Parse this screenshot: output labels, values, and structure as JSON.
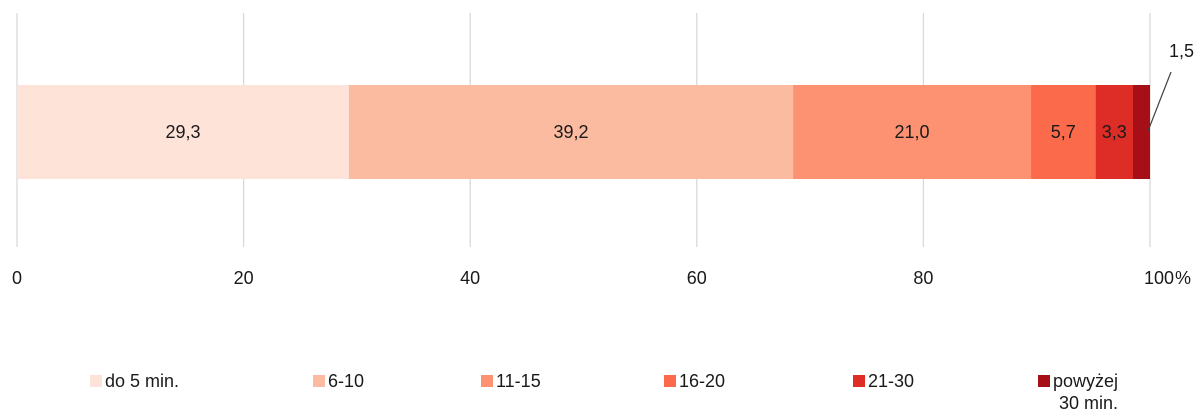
{
  "chart_data": {
    "type": "bar",
    "orientation": "horizontal",
    "stacked": true,
    "categories": [
      ""
    ],
    "series": [
      {
        "name": "do 5 min.",
        "values": [
          29.3
        ],
        "label": "29,3",
        "color": "#fde3d8"
      },
      {
        "name": "6-10",
        "values": [
          39.2
        ],
        "label": "39,2",
        "color": "#fbbba0"
      },
      {
        "name": "11-15",
        "values": [
          21.0
        ],
        "label": "21,0",
        "color": "#fc9272"
      },
      {
        "name": "16-20",
        "values": [
          5.7
        ],
        "label": "5,7",
        "color": "#fb6a4a"
      },
      {
        "name": "21-30",
        "values": [
          3.3
        ],
        "label": "3,3",
        "color": "#de2d26"
      },
      {
        "name": "powyżej\n30 min.",
        "values": [
          1.5
        ],
        "label": "1,5",
        "color": "#a50f15"
      }
    ],
    "xlim": [
      0,
      100
    ],
    "xticks": [
      "0",
      "20",
      "40",
      "60",
      "80",
      "100"
    ],
    "unit_label": "%",
    "grid": "vertical",
    "legend": "bottom"
  }
}
